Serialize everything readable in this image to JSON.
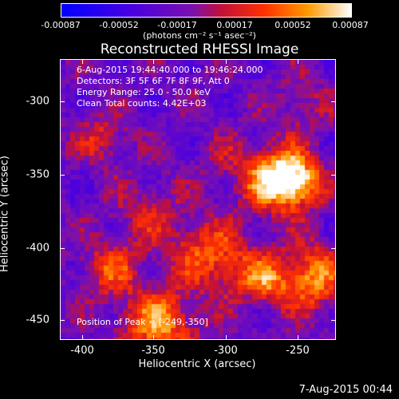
{
  "colorbar": {
    "ticks": [
      "-0.00087",
      "-0.00052",
      "-0.00017",
      "0.00017",
      "0.00052",
      "0.00087"
    ],
    "units": "(photons cm⁻² s⁻¹ asec⁻²)"
  },
  "title": "Reconstructed RHESSI Image",
  "info": {
    "time_range": "6-Aug-2015 19:44:40.000 to 19:46:24.000",
    "detectors": "Detectors: 3F 5F 6F 7F 8F 9F, Att 0",
    "energy": "Energy Range: 25.0 - 50.0 keV",
    "clean": "Clean     Total counts: 4.42E+03",
    "peak": "Position of Peak = [-249,-350]"
  },
  "axes": {
    "xlabel": "Heliocentric X (arcsec)",
    "ylabel": "Heliocentric Y (arcsec)",
    "xticks": [
      "-400",
      "-350",
      "-300",
      "-250"
    ],
    "yticks": [
      "-300",
      "-350",
      "-400",
      "-450"
    ]
  },
  "timestamp": "7-Aug-2015 00:44"
}
